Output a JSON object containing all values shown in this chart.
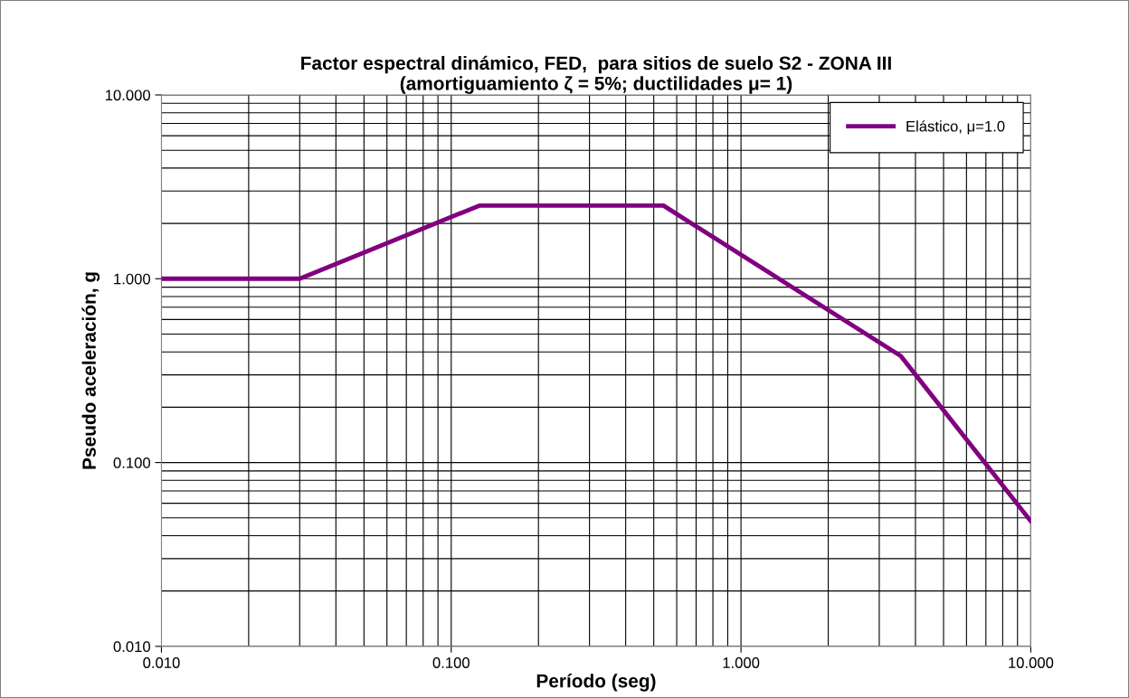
{
  "chart_data": {
    "type": "line",
    "title": "Factor espectral dinámico, FED,  para sitios de suelo S2 - ZONA III\n(amortiguamiento ζ = 5%; ductilidades μ= 1)",
    "xlabel": "Período (seg)",
    "ylabel": "Pseudo aceleración, g",
    "log": "xy",
    "xlim": [
      0.01,
      10
    ],
    "ylim": [
      0.01,
      10
    ],
    "xticks": [
      {
        "value": 0.01,
        "label": "0.010"
      },
      {
        "value": 0.1,
        "label": "0.100"
      },
      {
        "value": 1,
        "label": "1.000"
      },
      {
        "value": 10,
        "label": "10.000"
      }
    ],
    "yticks": [
      {
        "value": 0.01,
        "label": "0.010"
      },
      {
        "value": 0.1,
        "label": "0.100"
      },
      {
        "value": 1,
        "label": "1.000"
      },
      {
        "value": 10,
        "label": "10.000"
      }
    ],
    "grid": true,
    "legend": "top right",
    "marker": "none",
    "line_style": "solid",
    "series": [
      {
        "name": "Elástico, μ=1.0",
        "color": "#800080",
        "x": [
          0.01,
          0.03,
          0.125,
          0.54,
          3.56,
          10
        ],
        "values": [
          1.0,
          1.0,
          2.5,
          2.5,
          0.38,
          0.048
        ]
      }
    ]
  }
}
